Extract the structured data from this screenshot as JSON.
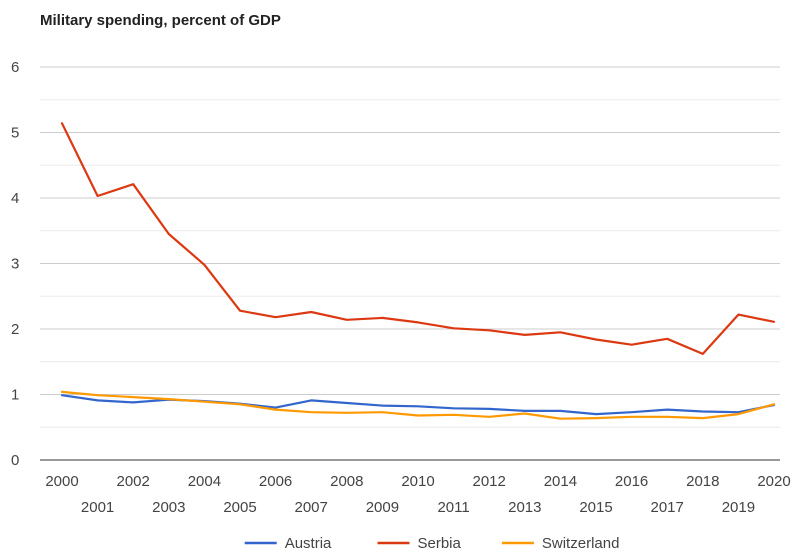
{
  "chart_data": {
    "type": "line",
    "title": "Military spending, percent of GDP",
    "xlabel": "",
    "ylabel": "",
    "ylim": [
      0,
      6
    ],
    "yticks": [
      0,
      1,
      2,
      3,
      4,
      5,
      6
    ],
    "grid": true,
    "legend_position": "bottom",
    "x": [
      2000,
      2001,
      2002,
      2003,
      2004,
      2005,
      2006,
      2007,
      2008,
      2009,
      2010,
      2011,
      2012,
      2013,
      2014,
      2015,
      2016,
      2017,
      2018,
      2019,
      2020
    ],
    "series": [
      {
        "name": "Austria",
        "color": "#3366cc",
        "values": [
          0.99,
          0.91,
          0.88,
          0.92,
          0.9,
          0.86,
          0.8,
          0.91,
          0.87,
          0.83,
          0.82,
          0.79,
          0.78,
          0.75,
          0.75,
          0.7,
          0.73,
          0.77,
          0.74,
          0.73,
          0.84
        ]
      },
      {
        "name": "Serbia",
        "color": "#dc3912",
        "values": [
          5.14,
          4.03,
          4.21,
          3.45,
          2.98,
          2.28,
          2.18,
          2.26,
          2.14,
          2.17,
          2.1,
          2.01,
          1.98,
          1.91,
          1.95,
          1.84,
          1.76,
          1.85,
          1.62,
          2.22,
          2.11
        ]
      },
      {
        "name": "Switzerland",
        "color": "#ff9900",
        "values": [
          1.04,
          0.99,
          0.96,
          0.93,
          0.89,
          0.85,
          0.77,
          0.73,
          0.72,
          0.73,
          0.68,
          0.69,
          0.66,
          0.71,
          0.63,
          0.64,
          0.66,
          0.66,
          0.64,
          0.7,
          0.85
        ]
      }
    ]
  }
}
